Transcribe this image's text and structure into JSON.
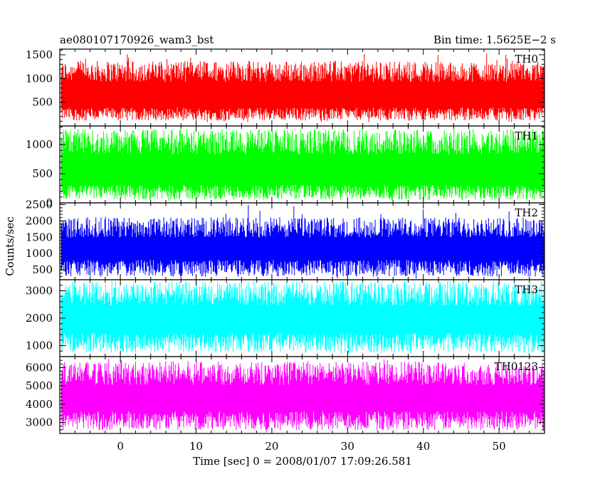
{
  "header": {
    "title": "ae080107170926_wam3_bst",
    "bin_time": "Bin time: 1.5625E−2 s"
  },
  "axis": {
    "xlabel": "Time [sec] 0 = 2008/01/07 17:09:26.581",
    "ylabel": "Counts/sec"
  },
  "chart_data": [
    {
      "type": "line",
      "name": "TH0",
      "color": "#ff0000",
      "xlim": [
        -8,
        56
      ],
      "ylim": [
        0,
        1620
      ],
      "x_ticks": [
        0,
        10,
        20,
        30,
        40,
        50
      ],
      "y_ticks": [
        500,
        1000,
        1500
      ],
      "y_tick_labels": [
        "500",
        "1000",
        "1500"
      ],
      "noise": {
        "x_start": -7.8,
        "x_end": 56.0,
        "low": 80,
        "high": 1600,
        "typical_low": 250,
        "typical_high": 1150
      }
    },
    {
      "type": "line",
      "name": "TH1",
      "color": "#00ff00",
      "xlim": [
        -8,
        56
      ],
      "ylim": [
        0,
        1320
      ],
      "x_ticks": [
        0,
        10,
        20,
        30,
        40,
        50
      ],
      "y_ticks": [
        0,
        500,
        1000
      ],
      "y_tick_labels": [
        "0",
        "500",
        "1000"
      ],
      "noise": {
        "x_start": -7.8,
        "x_end": 56.0,
        "low": 20,
        "high": 1300,
        "typical_low": 180,
        "typical_high": 1050
      }
    },
    {
      "type": "line",
      "name": "TH2",
      "color": "#0000ff",
      "xlim": [
        -8,
        56
      ],
      "ylim": [
        200,
        2550
      ],
      "x_ticks": [
        0,
        10,
        20,
        30,
        40,
        50
      ],
      "y_ticks": [
        500,
        1000,
        1500,
        2000,
        2500
      ],
      "y_tick_labels": [
        "500",
        "1000",
        "1500",
        "2000",
        "2500"
      ],
      "noise": {
        "x_start": -7.8,
        "x_end": 56.0,
        "low": 230,
        "high": 2500,
        "typical_low": 550,
        "typical_high": 1800
      }
    },
    {
      "type": "line",
      "name": "TH3",
      "color": "#00ffff",
      "xlim": [
        -8,
        56
      ],
      "ylim": [
        600,
        3400
      ],
      "x_ticks": [
        0,
        10,
        20,
        30,
        40,
        50
      ],
      "y_ticks": [
        1000,
        2000,
        3000
      ],
      "y_tick_labels": [
        "1000",
        "2000",
        "3000"
      ],
      "noise": {
        "x_start": -7.8,
        "x_end": 56.0,
        "low": 650,
        "high": 3380,
        "typical_low": 1100,
        "typical_high": 2900
      }
    },
    {
      "type": "line",
      "name": "TH0123",
      "color": "#ff00ff",
      "xlim": [
        -8,
        56
      ],
      "ylim": [
        2400,
        6600
      ],
      "x_ticks": [
        0,
        10,
        20,
        30,
        40,
        50
      ],
      "x_tick_labels": [
        "0",
        "10",
        "20",
        "30",
        "40",
        "50"
      ],
      "y_ticks": [
        3000,
        4000,
        5000,
        6000
      ],
      "y_tick_labels": [
        "3000",
        "4000",
        "5000",
        "6000"
      ],
      "noise": {
        "x_start": -7.8,
        "x_end": 56.0,
        "low": 2450,
        "high": 6550,
        "typical_low": 3100,
        "typical_high": 5700
      }
    }
  ]
}
